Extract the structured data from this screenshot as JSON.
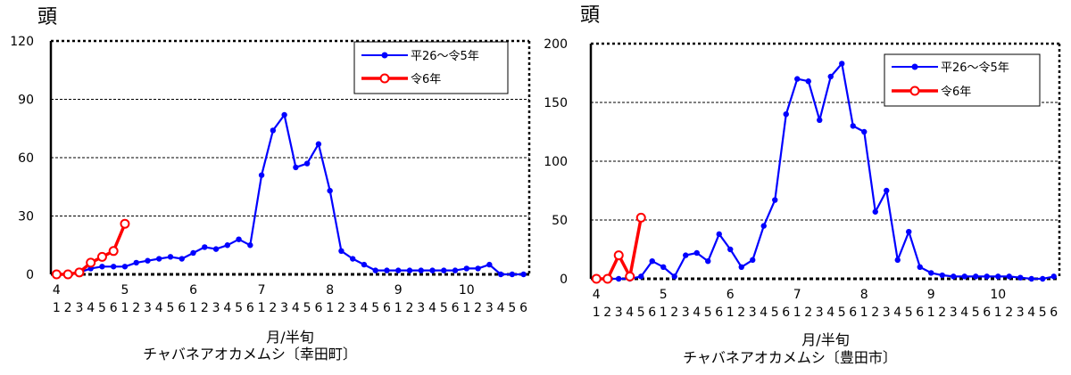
{
  "chart_data": [
    {
      "type": "line",
      "unit_label": "頭",
      "xlabel": "月/半旬",
      "title": "チャバネアオカメムシ〔幸田町〕",
      "ylim": [
        0,
        120
      ],
      "yticks": [
        "0",
        "30",
        "60",
        "90",
        "120"
      ],
      "month_labels": [
        "4",
        "5",
        "6",
        "7",
        "8",
        "9",
        "10"
      ],
      "subperiod_labels": [
        "1",
        "2",
        "3",
        "4",
        "5",
        "6",
        "1",
        "2",
        "3",
        "4",
        "5",
        "6",
        "1",
        "2",
        "3",
        "4",
        "5",
        "6",
        "1",
        "2",
        "3",
        "4",
        "5",
        "6",
        "1",
        "2",
        "3",
        "4",
        "5",
        "6",
        "1",
        "2",
        "3",
        "4",
        "5",
        "6",
        "1",
        "2",
        "3",
        "4",
        "5",
        "6"
      ],
      "grid": "horizontal dashed",
      "legend_position": "top-right",
      "series": [
        {
          "name": "平26～令5年",
          "color": "#0000ff",
          "marker": "filled-circle",
          "values": [
            0,
            0,
            1,
            3,
            4,
            4,
            4,
            6,
            7,
            8,
            9,
            8,
            11,
            14,
            13,
            15,
            18,
            15,
            51,
            74,
            82,
            55,
            57,
            67,
            43,
            12,
            8,
            5,
            2,
            2,
            2,
            2,
            2,
            2,
            2,
            2,
            3,
            3,
            5,
            0,
            0,
            0
          ]
        },
        {
          "name": "令6年",
          "color": "#ff0000",
          "marker": "open-circle",
          "values": [
            0,
            0,
            1,
            6,
            9,
            12,
            26
          ]
        }
      ]
    },
    {
      "type": "line",
      "unit_label": "頭",
      "xlabel": "月/半旬",
      "title": "チャバネアオカメムシ〔豊田市〕",
      "ylim": [
        0,
        200
      ],
      "yticks": [
        "0",
        "50",
        "100",
        "150",
        "200"
      ],
      "month_labels": [
        "4",
        "5",
        "6",
        "7",
        "8",
        "9",
        "10"
      ],
      "subperiod_labels": [
        "1",
        "2",
        "3",
        "4",
        "5",
        "6",
        "1",
        "2",
        "3",
        "4",
        "5",
        "6",
        "1",
        "2",
        "3",
        "4",
        "5",
        "6",
        "1",
        "2",
        "3",
        "4",
        "5",
        "6",
        "1",
        "2",
        "3",
        "4",
        "5",
        "6",
        "1",
        "2",
        "3",
        "4",
        "5",
        "6",
        "1",
        "2",
        "3",
        "4",
        "5",
        "6"
      ],
      "grid": "horizontal dashed",
      "legend_position": "top-right",
      "series": [
        {
          "name": "平26～令5年",
          "color": "#0000ff",
          "marker": "filled-circle",
          "values": [
            0,
            0,
            0,
            0,
            2,
            15,
            10,
            2,
            20,
            22,
            15,
            38,
            25,
            10,
            16,
            45,
            67,
            140,
            170,
            168,
            135,
            172,
            183,
            130,
            125,
            57,
            75,
            16,
            40,
            10,
            5,
            3,
            2,
            2,
            2,
            2,
            2,
            2,
            1,
            0,
            0,
            2
          ]
        },
        {
          "name": "令6年",
          "color": "#ff0000",
          "marker": "open-circle",
          "values": [
            0,
            0,
            20,
            2,
            52
          ]
        }
      ]
    }
  ]
}
